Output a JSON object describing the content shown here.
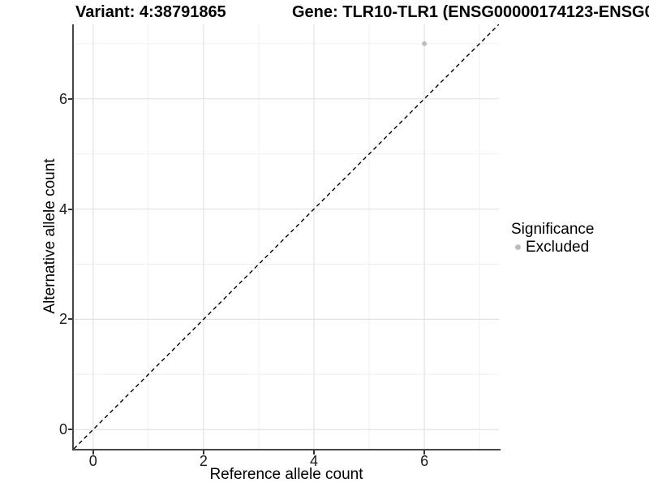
{
  "header": {
    "variant_title": "Variant: 4:38791865",
    "gene_title": "Gene: TLR10-TLR1 (ENSG00000174123-ENSG0"
  },
  "chart_data": {
    "type": "scatter",
    "title": "Variant: 4:38791865 / Gene: TLR10-TLR1 (ENSG00000174123-ENSG0...)",
    "xlabel": "Reference allele count",
    "ylabel": "Alternative allele count",
    "xlim": [
      -0.35,
      7.35
    ],
    "ylim": [
      -0.35,
      7.35
    ],
    "x_major_ticks": [
      0,
      2,
      4,
      6
    ],
    "y_major_ticks": [
      0,
      2,
      4,
      6
    ],
    "x_minor_gridlines": [
      1,
      3,
      5,
      7
    ],
    "y_minor_gridlines": [
      1,
      3,
      5,
      7
    ],
    "grid": true,
    "series": [
      {
        "name": "Excluded",
        "points": [
          {
            "x": 6,
            "y": 7
          }
        ],
        "color": "#bdbdbd"
      }
    ],
    "reference_line": {
      "style": "dashed",
      "slope": 1,
      "intercept": 0,
      "color": "#000000"
    },
    "legend": {
      "title": "Significance",
      "position": "right",
      "items": [
        {
          "label": "Excluded",
          "color": "#bdbdbd"
        }
      ]
    }
  },
  "colors": {
    "grid_major": "#e2e2e2",
    "grid_minor": "#f0f0f0",
    "axis_line": "#474747",
    "tick": "#333333",
    "point": "#bdbdbd",
    "text": "#000000"
  }
}
